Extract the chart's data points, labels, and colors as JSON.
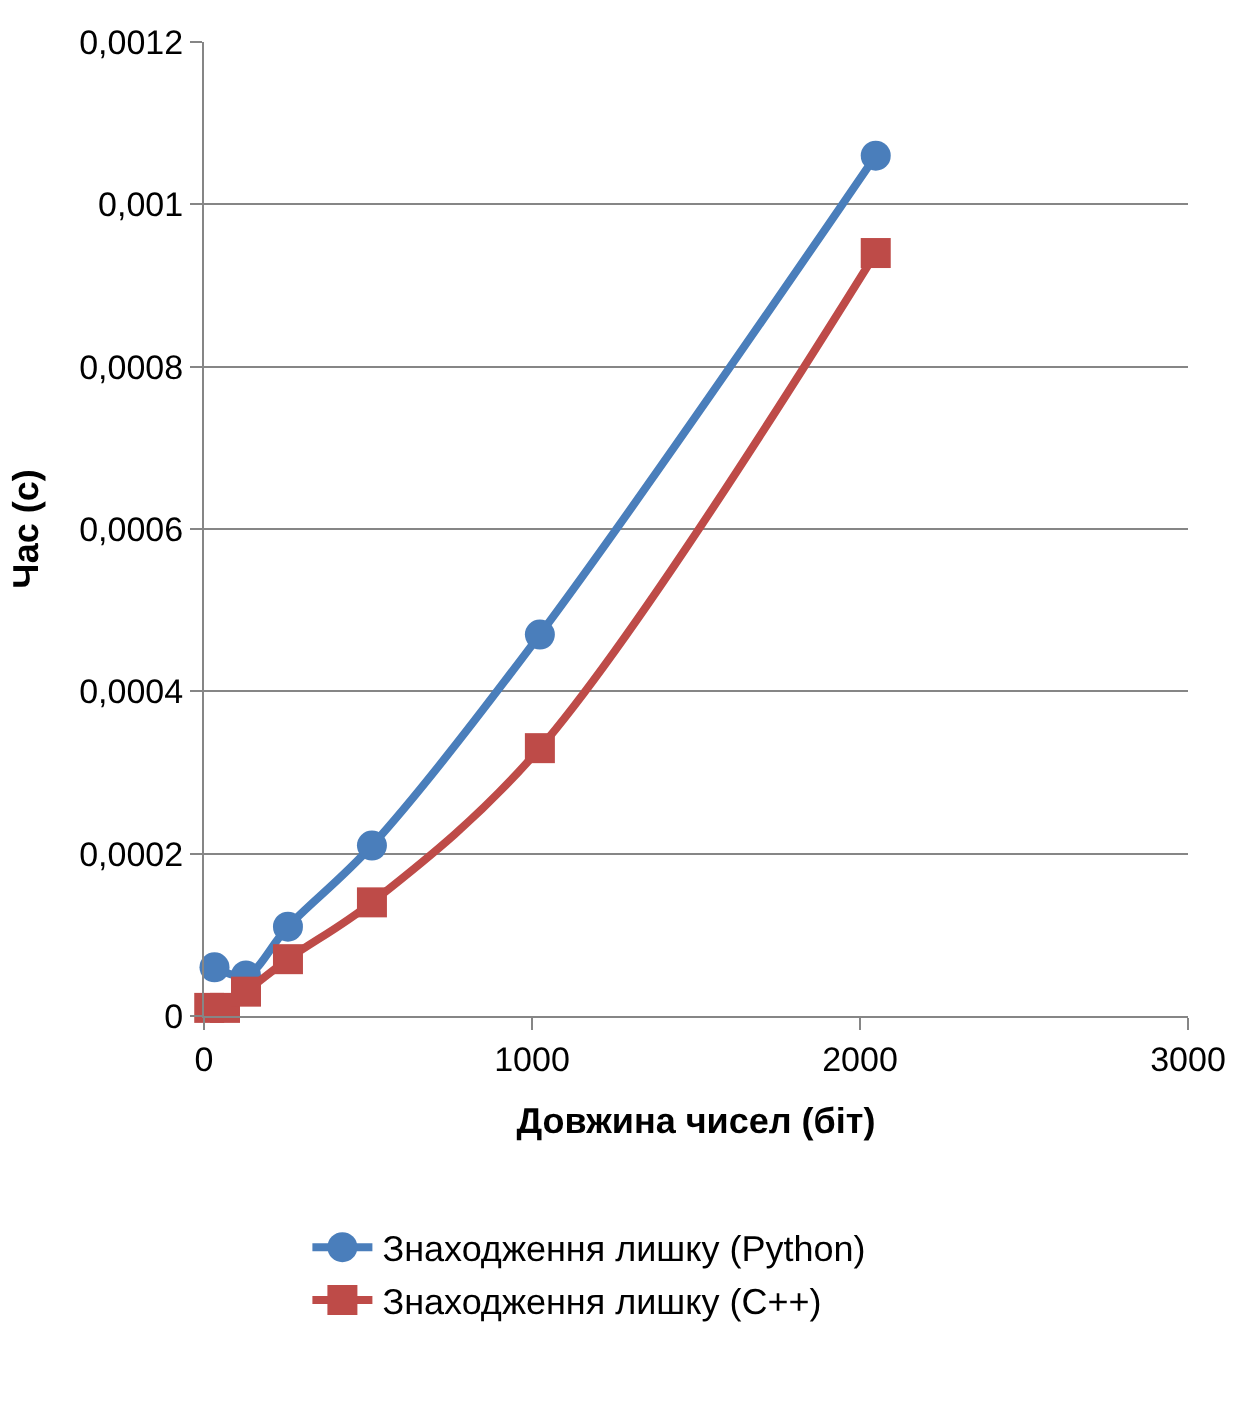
{
  "chart_data": {
    "type": "line",
    "xlabel": "Довжина чисел (біт)",
    "ylabel": "Час (с)",
    "xlim": [
      0,
      3000
    ],
    "xticks": [
      0,
      1000,
      2000,
      3000
    ],
    "ylim": [
      0,
      0.0012
    ],
    "yticks": [
      0,
      {
        "value": 0.0002,
        "label": "0,0002"
      },
      {
        "value": 0.0004,
        "label": "0,0004"
      },
      {
        "value": 0.0006,
        "label": "0,0006"
      },
      {
        "value": 0.0008,
        "label": "0,0008"
      },
      {
        "value": 0.001,
        "label": "0,001"
      },
      {
        "value": 0.0012,
        "label": "0,0012"
      }
    ],
    "grid": "y",
    "legend": "bottom",
    "line_style": "solid",
    "series": [
      {
        "name": "Знаходження лишку (Python)",
        "color": "#4a7ebb",
        "marker": "circle",
        "x": [
          32,
          128,
          256,
          512,
          1024,
          2048
        ],
        "values": [
          6e-05,
          5e-05,
          0.00011,
          0.00021,
          0.00047,
          0.00106
        ]
      },
      {
        "name": "Знаходження лишку (C++)",
        "color": "#be4b48",
        "marker": "square",
        "x": [
          16,
          64,
          128,
          256,
          512,
          1024,
          2048
        ],
        "values": [
          1e-05,
          1e-05,
          3e-05,
          7e-05,
          0.00014,
          0.00033,
          0.00094
        ]
      }
    ]
  }
}
